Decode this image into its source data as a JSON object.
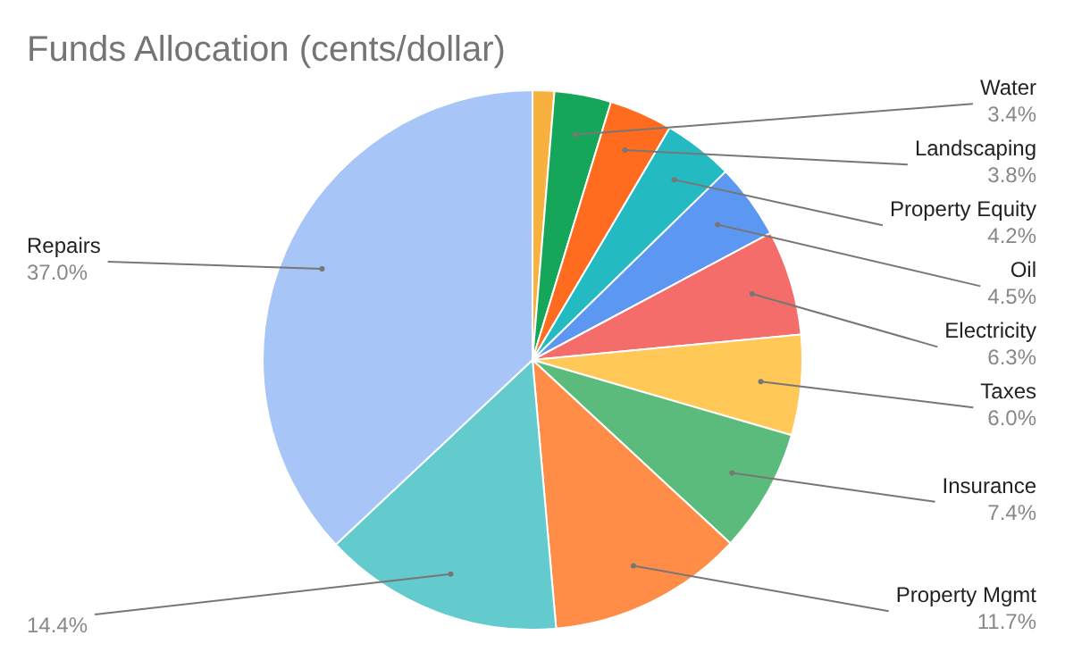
{
  "chart_data": {
    "type": "pie",
    "title": "Funds Allocation (cents/dollar)",
    "categories": [
      null,
      "Water",
      "Landscaping",
      "Property Equity",
      "Oil",
      "Electricity",
      "Taxes",
      "Insurance",
      "Property Mgmt",
      null,
      "Repairs"
    ],
    "values": [
      1.3,
      3.4,
      3.8,
      4.2,
      4.5,
      6.3,
      6.0,
      7.4,
      11.7,
      14.4,
      37.0
    ],
    "value_labels": [
      null,
      "3.4%",
      "3.8%",
      "4.2%",
      "4.5%",
      "6.3%",
      "6.0%",
      "7.4%",
      "11.7%",
      "14.4%",
      "37.0%"
    ],
    "colors": [
      "#f6b23c",
      "#16a659",
      "#ff6b1f",
      "#23bac2",
      "#5c97f2",
      "#f46d6a",
      "#ffc857",
      "#5bbb7c",
      "#ff8c47",
      "#63cacd",
      "#a7c6f7"
    ],
    "legend": false
  }
}
